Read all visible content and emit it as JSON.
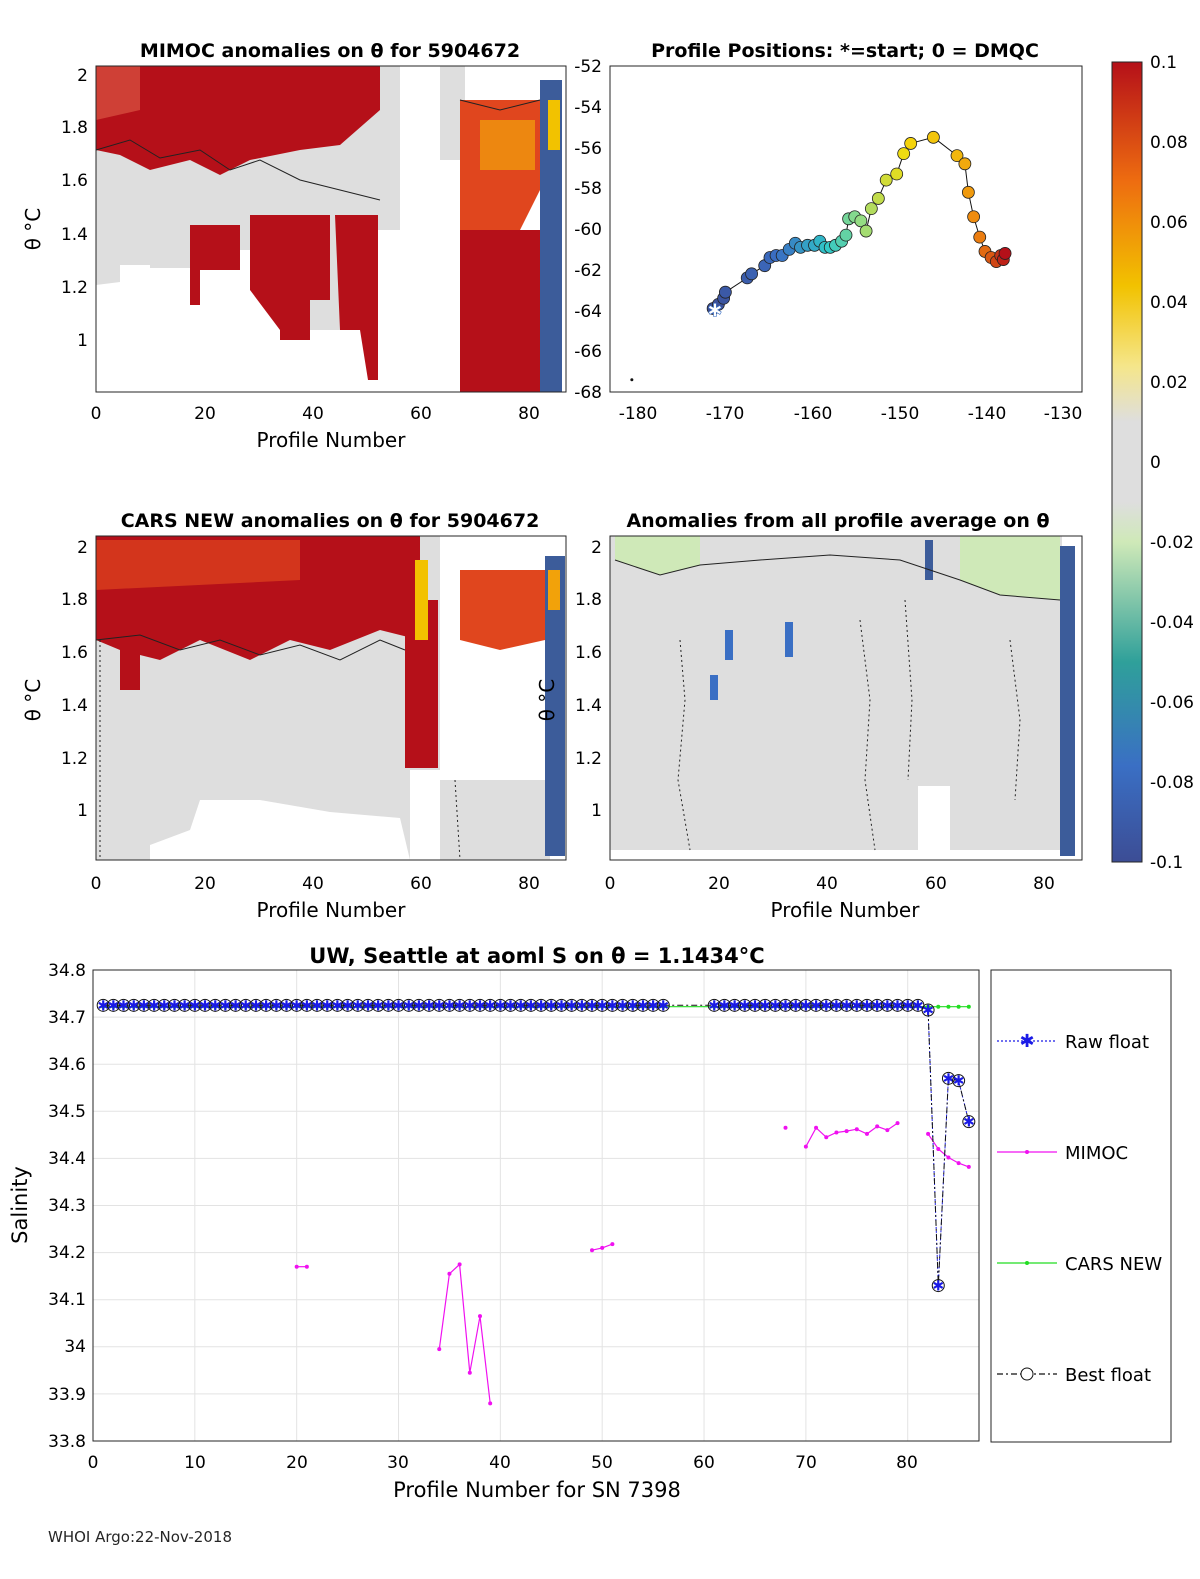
{
  "footer": "WHOI Argo:22-Nov-2018",
  "colorbar": {
    "ticks": [
      "0.1",
      "0.08",
      "0.06",
      "0.04",
      "0.02",
      "0",
      "-0.02",
      "-0.04",
      "-0.06",
      "-0.08",
      "-0.1"
    ],
    "range": [
      -0.1,
      0.1
    ]
  },
  "chart_data": [
    {
      "id": "mimoc",
      "type": "heatmap",
      "title": "MIMOC anomalies on θ  for 5904672",
      "xlabel": "Profile Number",
      "ylabel": "θ °C",
      "xticks": [
        "0",
        "20",
        "40",
        "60",
        "80"
      ],
      "yticks": [
        "2",
        "1.8",
        "1.6",
        "1.4",
        "1.2",
        "1"
      ],
      "xlim": [
        0,
        87
      ],
      "ylim": [
        0.82,
        2.02
      ]
    },
    {
      "id": "positions",
      "type": "scatter",
      "title": "Profile Positions: *=start; 0 = DMQC",
      "xticks": [
        "-180",
        "-170",
        "-160",
        "-150",
        "-140",
        "-130"
      ],
      "yticks": [
        "-52",
        "-54",
        "-56",
        "-58",
        "-60",
        "-62",
        "-64",
        "-66",
        "-68"
      ],
      "xlim": [
        -182,
        -128
      ],
      "ylim": [
        -68,
        -52
      ],
      "track": [
        [
          -170.2,
          -63.9
        ],
        [
          -169.6,
          -63.7
        ],
        [
          -169.0,
          -63.4
        ],
        [
          -168.8,
          -63.1
        ],
        [
          -166.3,
          -62.4
        ],
        [
          -165.8,
          -62.2
        ],
        [
          -164.3,
          -61.8
        ],
        [
          -163.7,
          -61.4
        ],
        [
          -163.0,
          -61.3
        ],
        [
          -162.3,
          -61.3
        ],
        [
          -161.5,
          -61.0
        ],
        [
          -160.8,
          -60.7
        ],
        [
          -160.2,
          -60.9
        ],
        [
          -159.4,
          -60.8
        ],
        [
          -158.6,
          -60.8
        ],
        [
          -158.0,
          -60.6
        ],
        [
          -157.4,
          -60.9
        ],
        [
          -156.8,
          -60.9
        ],
        [
          -156.2,
          -60.8
        ],
        [
          -155.5,
          -60.6
        ],
        [
          -155.0,
          -60.3
        ],
        [
          -154.7,
          -59.5
        ],
        [
          -154.0,
          -59.4
        ],
        [
          -153.3,
          -59.6
        ],
        [
          -152.7,
          -60.1
        ],
        [
          -152.1,
          -59.0
        ],
        [
          -151.3,
          -58.5
        ],
        [
          -150.4,
          -57.6
        ],
        [
          -149.2,
          -57.3
        ],
        [
          -148.4,
          -56.3
        ],
        [
          -147.6,
          -55.8
        ],
        [
          -145.0,
          -55.5
        ],
        [
          -142.3,
          -56.4
        ],
        [
          -141.4,
          -56.8
        ],
        [
          -141.0,
          -58.2
        ],
        [
          -140.4,
          -59.4
        ],
        [
          -139.7,
          -60.4
        ],
        [
          -139.1,
          -61.1
        ],
        [
          -138.4,
          -61.4
        ],
        [
          -137.8,
          -61.6
        ],
        [
          -137.3,
          -61.3
        ],
        [
          -137.0,
          -61.5
        ],
        [
          -136.8,
          -61.2
        ]
      ],
      "start": [
        -170.0,
        -64.0
      ],
      "dmqc": [
        -179.5,
        -67.4
      ]
    },
    {
      "id": "cars",
      "type": "heatmap",
      "title": "CARS NEW anomalies on θ for 5904672",
      "xlabel": "Profile Number",
      "ylabel": "θ °C",
      "xticks": [
        "0",
        "20",
        "40",
        "60",
        "80"
      ],
      "yticks": [
        "2",
        "1.8",
        "1.6",
        "1.4",
        "1.2",
        "1"
      ],
      "xlim": [
        0,
        87
      ],
      "ylim": [
        0.82,
        2.02
      ]
    },
    {
      "id": "average",
      "type": "heatmap",
      "title": "Anomalies from all profile average on θ",
      "xlabel": "Profile Number",
      "ylabel": "θ °C",
      "xticks": [
        "0",
        "20",
        "40",
        "60",
        "80"
      ],
      "yticks": [
        "2",
        "1.8",
        "1.6",
        "1.4",
        "1.2",
        "1"
      ],
      "xlim": [
        0,
        87
      ],
      "ylim": [
        0.82,
        2.02
      ]
    },
    {
      "id": "salinity",
      "type": "line",
      "title": "UW, Seattle at aoml S on θ = 1.1434°C",
      "xlabel": "Profile Number for SN 7398",
      "ylabel": "Salinity",
      "xticks": [
        "0",
        "10",
        "20",
        "30",
        "40",
        "50",
        "60",
        "70",
        "80"
      ],
      "yticks": [
        "34.8",
        "34.7",
        "34.6",
        "34.5",
        "34.4",
        "34.3",
        "34.2",
        "34.1",
        "34",
        "33.9",
        "33.8"
      ],
      "xlim": [
        0,
        87
      ],
      "ylim": [
        33.8,
        34.8
      ],
      "legend": [
        "Raw float",
        "MIMOC",
        "CARS NEW",
        "Best float"
      ],
      "float_x": [
        1,
        2,
        3,
        4,
        5,
        6,
        7,
        8,
        9,
        10,
        11,
        12,
        13,
        14,
        15,
        16,
        17,
        18,
        19,
        20,
        21,
        22,
        23,
        24,
        25,
        26,
        27,
        28,
        29,
        30,
        31,
        32,
        33,
        34,
        35,
        36,
        37,
        38,
        39,
        40,
        41,
        42,
        43,
        44,
        45,
        46,
        47,
        48,
        49,
        50,
        51,
        52,
        53,
        54,
        55,
        56,
        61,
        62,
        63,
        64,
        65,
        66,
        67,
        68,
        69,
        70,
        71,
        72,
        73,
        74,
        75,
        76,
        77,
        78,
        79,
        80,
        81,
        82,
        83,
        84,
        85,
        86
      ],
      "float_y": [
        34.725,
        34.725,
        34.725,
        34.725,
        34.725,
        34.725,
        34.725,
        34.725,
        34.725,
        34.725,
        34.725,
        34.725,
        34.725,
        34.725,
        34.725,
        34.725,
        34.725,
        34.725,
        34.725,
        34.725,
        34.725,
        34.725,
        34.725,
        34.725,
        34.725,
        34.725,
        34.725,
        34.725,
        34.725,
        34.725,
        34.725,
        34.725,
        34.725,
        34.725,
        34.725,
        34.725,
        34.725,
        34.725,
        34.725,
        34.725,
        34.725,
        34.725,
        34.725,
        34.725,
        34.725,
        34.725,
        34.725,
        34.725,
        34.725,
        34.725,
        34.725,
        34.725,
        34.725,
        34.725,
        34.725,
        34.725,
        34.725,
        34.725,
        34.725,
        34.725,
        34.725,
        34.725,
        34.725,
        34.725,
        34.725,
        34.725,
        34.725,
        34.725,
        34.725,
        34.725,
        34.725,
        34.725,
        34.725,
        34.725,
        34.725,
        34.725,
        34.725,
        34.715,
        34.13,
        34.57,
        34.565,
        34.478
      ],
      "gap_after": 56,
      "cars_x": [
        1,
        2,
        3,
        4,
        5,
        6,
        7,
        8,
        9,
        10,
        11,
        12,
        13,
        14,
        15,
        16,
        17,
        18,
        19,
        20,
        21,
        22,
        23,
        24,
        25,
        26,
        27,
        28,
        29,
        30,
        31,
        32,
        33,
        34,
        35,
        36,
        37,
        38,
        39,
        40,
        41,
        42,
        43,
        44,
        45,
        46,
        47,
        48,
        49,
        50,
        51,
        52,
        53,
        54,
        55,
        56,
        61,
        62,
        63,
        64,
        65,
        66,
        67,
        68,
        69,
        70,
        71,
        72,
        73,
        74,
        75,
        76,
        77,
        78,
        79,
        80,
        81,
        82,
        83,
        84,
        85,
        86
      ],
      "cars_y": 34.722,
      "mimoc_segments": [
        {
          "x": [
            20,
            21
          ],
          "y": [
            34.17,
            34.17
          ]
        },
        {
          "x": [
            34,
            35,
            36,
            37,
            38,
            39
          ],
          "y": [
            33.995,
            34.155,
            34.175,
            33.945,
            34.065,
            33.88
          ]
        },
        {
          "x": [
            49,
            50,
            51
          ],
          "y": [
            34.205,
            34.21,
            34.218
          ]
        },
        {
          "x": [
            68
          ],
          "y": [
            34.465
          ]
        },
        {
          "x": [
            70,
            71,
            72,
            73,
            74,
            75,
            76,
            77,
            78,
            79
          ],
          "y": [
            34.425,
            34.465,
            34.445,
            34.455,
            34.458,
            34.462,
            34.452,
            34.468,
            34.46,
            34.475
          ]
        },
        {
          "x": [
            82,
            83,
            84,
            85,
            86
          ],
          "y": [
            34.452,
            34.42,
            34.402,
            34.39,
            34.382
          ]
        }
      ]
    }
  ]
}
